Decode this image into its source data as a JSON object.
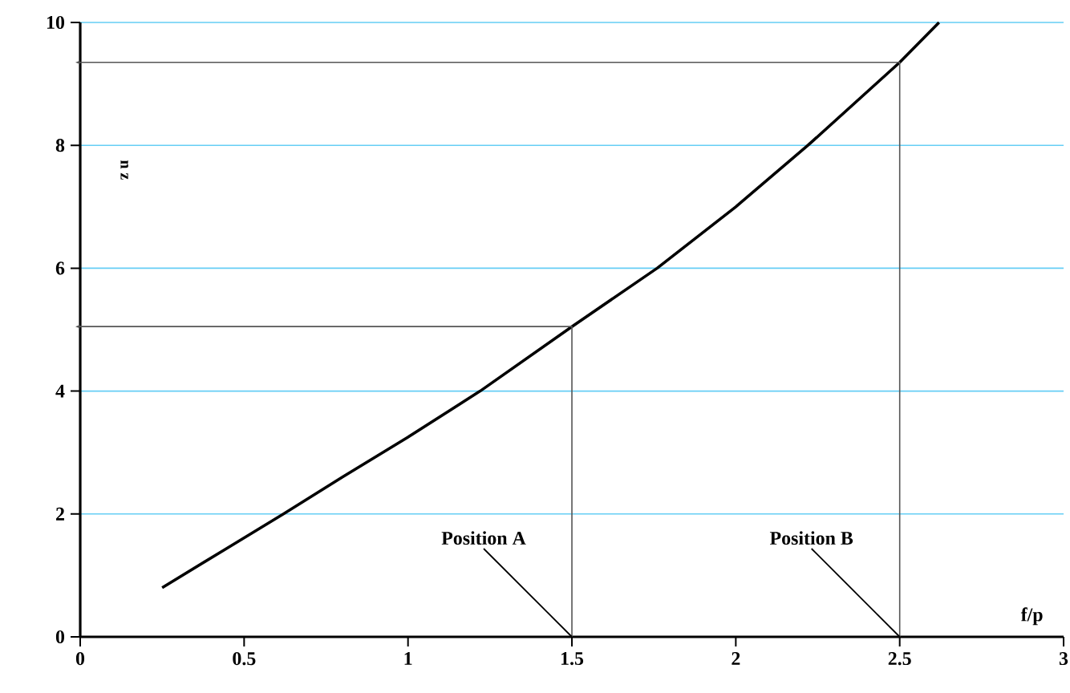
{
  "chart_data": {
    "type": "line",
    "xlabel": "f/p",
    "ylabel": "n z",
    "xlim": [
      0,
      3
    ],
    "ylim": [
      0,
      10
    ],
    "xticks": [
      0,
      0.5,
      1,
      1.5,
      2,
      2.5,
      3
    ],
    "yticks": [
      0,
      2,
      4,
      6,
      8,
      10
    ],
    "grid": "y",
    "series": [
      {
        "color": "#000000",
        "x": [
          0.25,
          0.45,
          0.62,
          0.8,
          1.0,
          1.22,
          1.5,
          1.76,
          2.0,
          2.22,
          2.5,
          2.62
        ],
        "values": [
          0.8,
          1.45,
          2.0,
          2.6,
          3.25,
          4.0,
          5.05,
          6.0,
          7.0,
          8.0,
          9.35,
          10.0
        ]
      },
      {
        "color": "#555555",
        "line_style": "solid",
        "x": [
          1.5,
          1.5,
          0
        ],
        "values": [
          0,
          5.05,
          5.05
        ]
      },
      {
        "color": "#555555",
        "line_style": "solid",
        "x": [
          2.5,
          2.5,
          0
        ],
        "values": [
          0,
          9.35,
          9.35
        ]
      }
    ],
    "annotations": [
      {
        "text": "Position A",
        "x": 1.5,
        "y": 0
      },
      {
        "text": "Position B",
        "x": 2.5,
        "y": 0
      }
    ]
  }
}
